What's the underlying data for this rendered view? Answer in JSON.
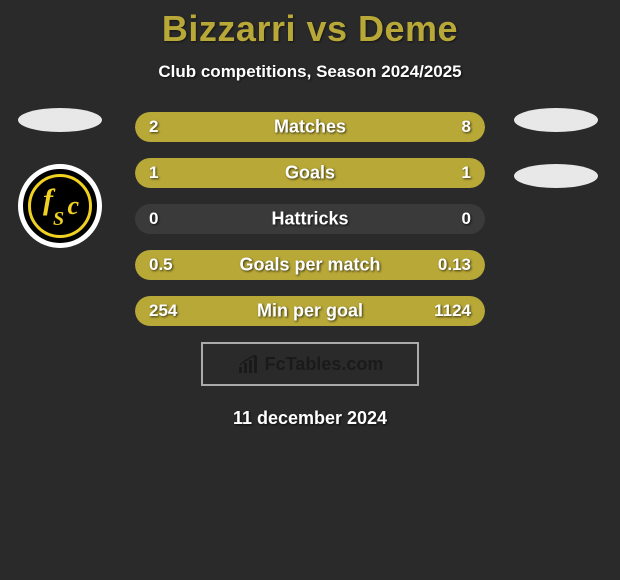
{
  "title": "Bizzarri vs Deme",
  "subtitle": "Club competitions, Season 2024/2025",
  "date": "11 december 2024",
  "footer": {
    "brand": "FcTables.com"
  },
  "colors": {
    "accent": "#b8a837",
    "background": "#2a2a2a",
    "bar_track": "#3a3a3a",
    "text": "#ffffff",
    "badge_yellow": "#f0d020"
  },
  "stats": [
    {
      "label": "Matches",
      "left_value": "2",
      "right_value": "8",
      "left_pct": 20,
      "right_pct": 80,
      "full": true
    },
    {
      "label": "Goals",
      "left_value": "1",
      "right_value": "1",
      "left_pct": 50,
      "right_pct": 50,
      "full": true
    },
    {
      "label": "Hattricks",
      "left_value": "0",
      "right_value": "0",
      "left_pct": 0,
      "right_pct": 0,
      "full": false
    },
    {
      "label": "Goals per match",
      "left_value": "0.5",
      "right_value": "0.13",
      "left_pct": 80,
      "right_pct": 20,
      "full": true
    },
    {
      "label": "Min per goal",
      "left_value": "254",
      "right_value": "1124",
      "left_pct": 18,
      "right_pct": 82,
      "full": true
    }
  ]
}
